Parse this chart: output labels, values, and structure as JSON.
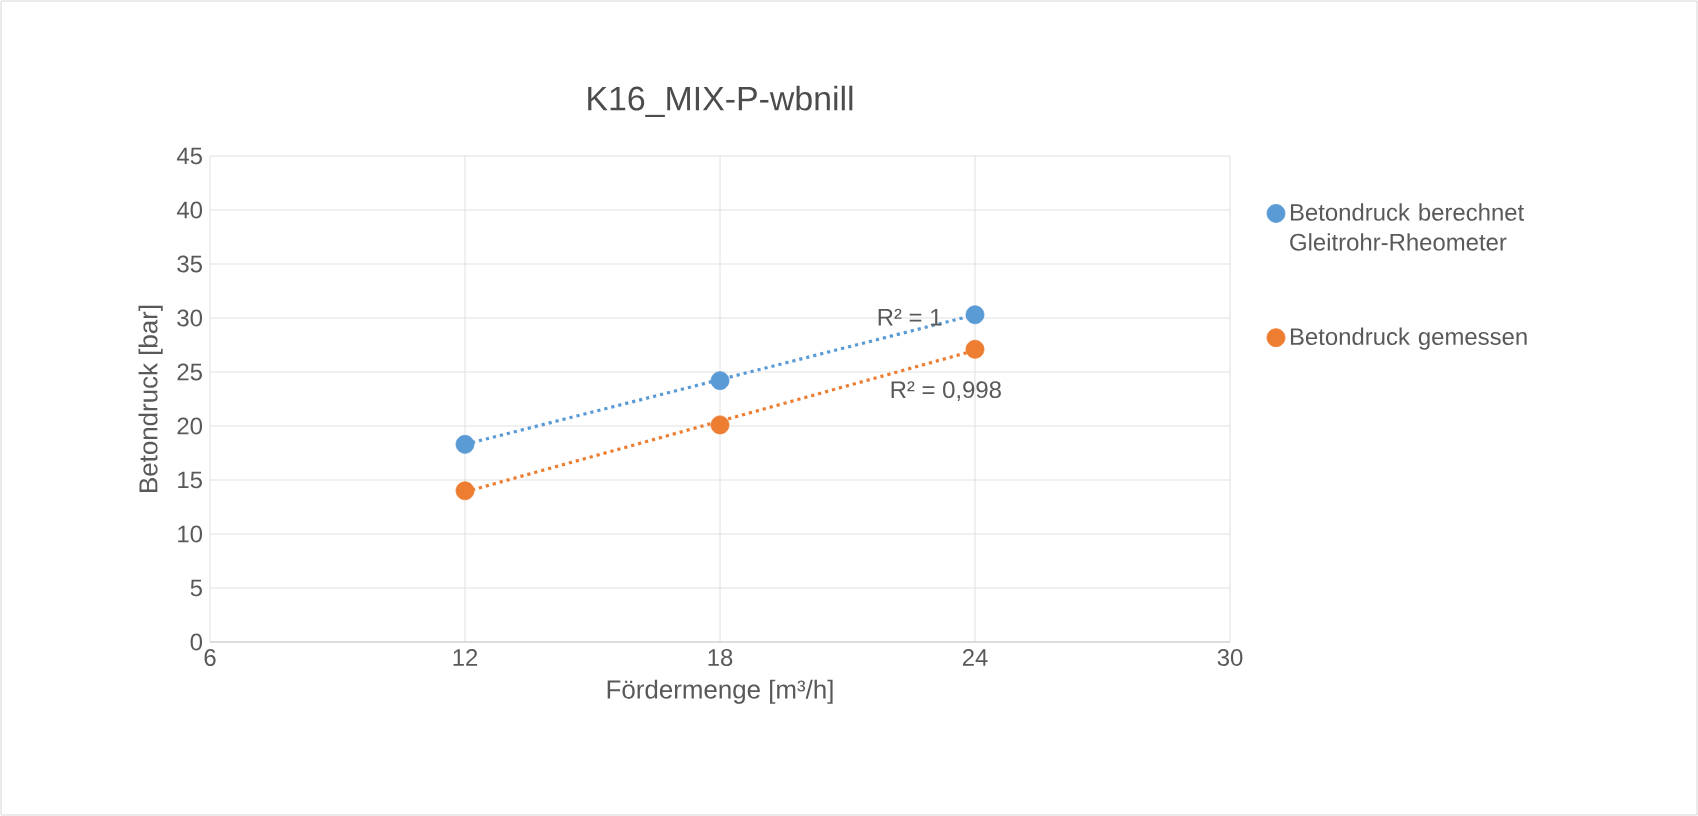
{
  "chart_data": {
    "type": "scatter",
    "title": "K16_MIX-P-wbnill",
    "xlabel": "Fördermenge [m³/h]",
    "ylabel": "Betondruck [bar]",
    "xlim": [
      6,
      30
    ],
    "xticks": [
      6,
      12,
      18,
      24,
      30
    ],
    "ylim": [
      0,
      45
    ],
    "yticks": [
      0,
      5,
      10,
      15,
      20,
      25,
      30,
      35,
      40,
      45
    ],
    "grid": true,
    "legend": "right",
    "series": [
      {
        "name": "Betondruck berechnet Gleitrohr-Rheometer",
        "color": "#5b9bd5",
        "marker": "circle",
        "x": [
          12,
          18,
          24
        ],
        "values": [
          18.3,
          24.2,
          30.3
        ]
      },
      {
        "name": "Betondruck gemessen",
        "color": "#ed7d31",
        "marker": "circle",
        "x": [
          12,
          18,
          24
        ],
        "values": [
          14,
          20.1,
          27.1
        ]
      },
      {
        "type": "line",
        "line_style": "dotted",
        "marker": "none",
        "color": "#5b9bd5",
        "x": [
          12,
          24
        ],
        "values": [
          18.3,
          30.3
        ]
      },
      {
        "type": "line",
        "line_style": "dotted",
        "marker": "none",
        "color": "#ed7d31",
        "x": [
          12,
          24
        ],
        "values": [
          13.9,
          27.0
        ]
      }
    ],
    "annotations": [
      "R² = 1",
      "R² = 0,998"
    ]
  }
}
